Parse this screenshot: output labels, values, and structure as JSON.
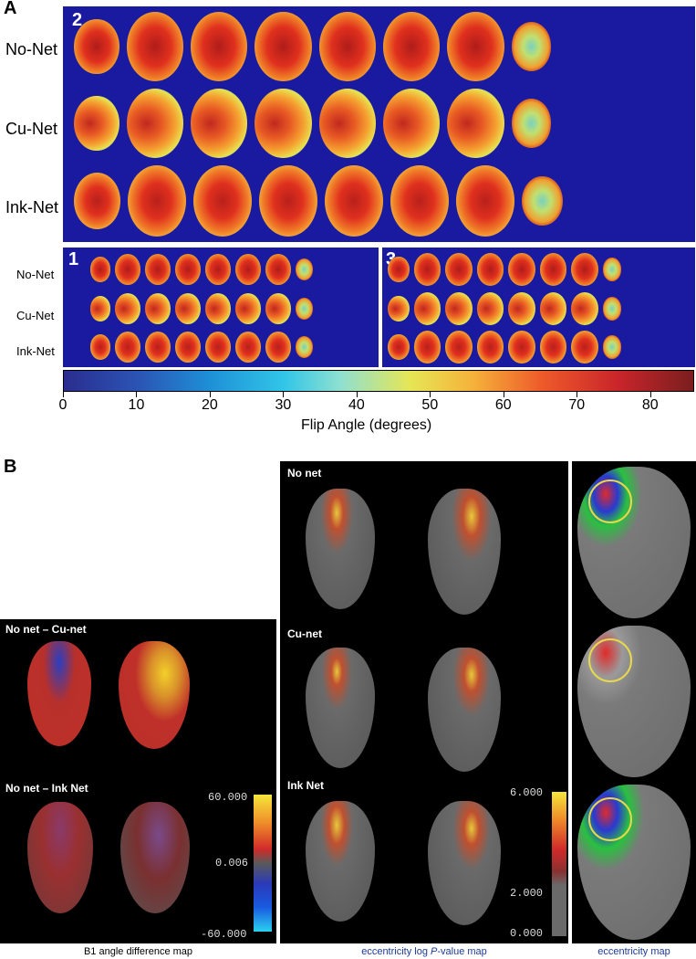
{
  "panel_a": {
    "letter": "A",
    "sub2": {
      "num": "2",
      "rows": [
        "No-Net",
        "Cu-Net",
        "Ink-Net"
      ]
    },
    "sub1": {
      "num": "1",
      "rows": [
        "No-Net",
        "Cu-Net",
        "Ink-Net"
      ]
    },
    "sub3": {
      "num": "3"
    },
    "colorbar": {
      "ticks": [
        "0",
        "10",
        "20",
        "30",
        "40",
        "50",
        "60",
        "70",
        "80"
      ],
      "label": "Flip Angle (degrees)",
      "range": [
        0,
        86
      ]
    }
  },
  "panel_b": {
    "letter": "B",
    "left": {
      "top_label": "No net – Cu-net",
      "bottom_label": "No net – Ink Net",
      "scale": {
        "max": "60.000",
        "mid": "0.006",
        "min": "-60.000"
      },
      "caption": "B1 angle difference map"
    },
    "middle": {
      "labels": [
        "No net",
        "Cu-net",
        "Ink Net"
      ],
      "scale": {
        "max": "6.000",
        "mid": "2.000",
        "min": "0.000"
      },
      "caption_pre": "eccentricity log ",
      "caption_italic": "P",
      "caption_post": "-value map"
    },
    "right": {
      "caption": "eccentricity map"
    }
  }
}
